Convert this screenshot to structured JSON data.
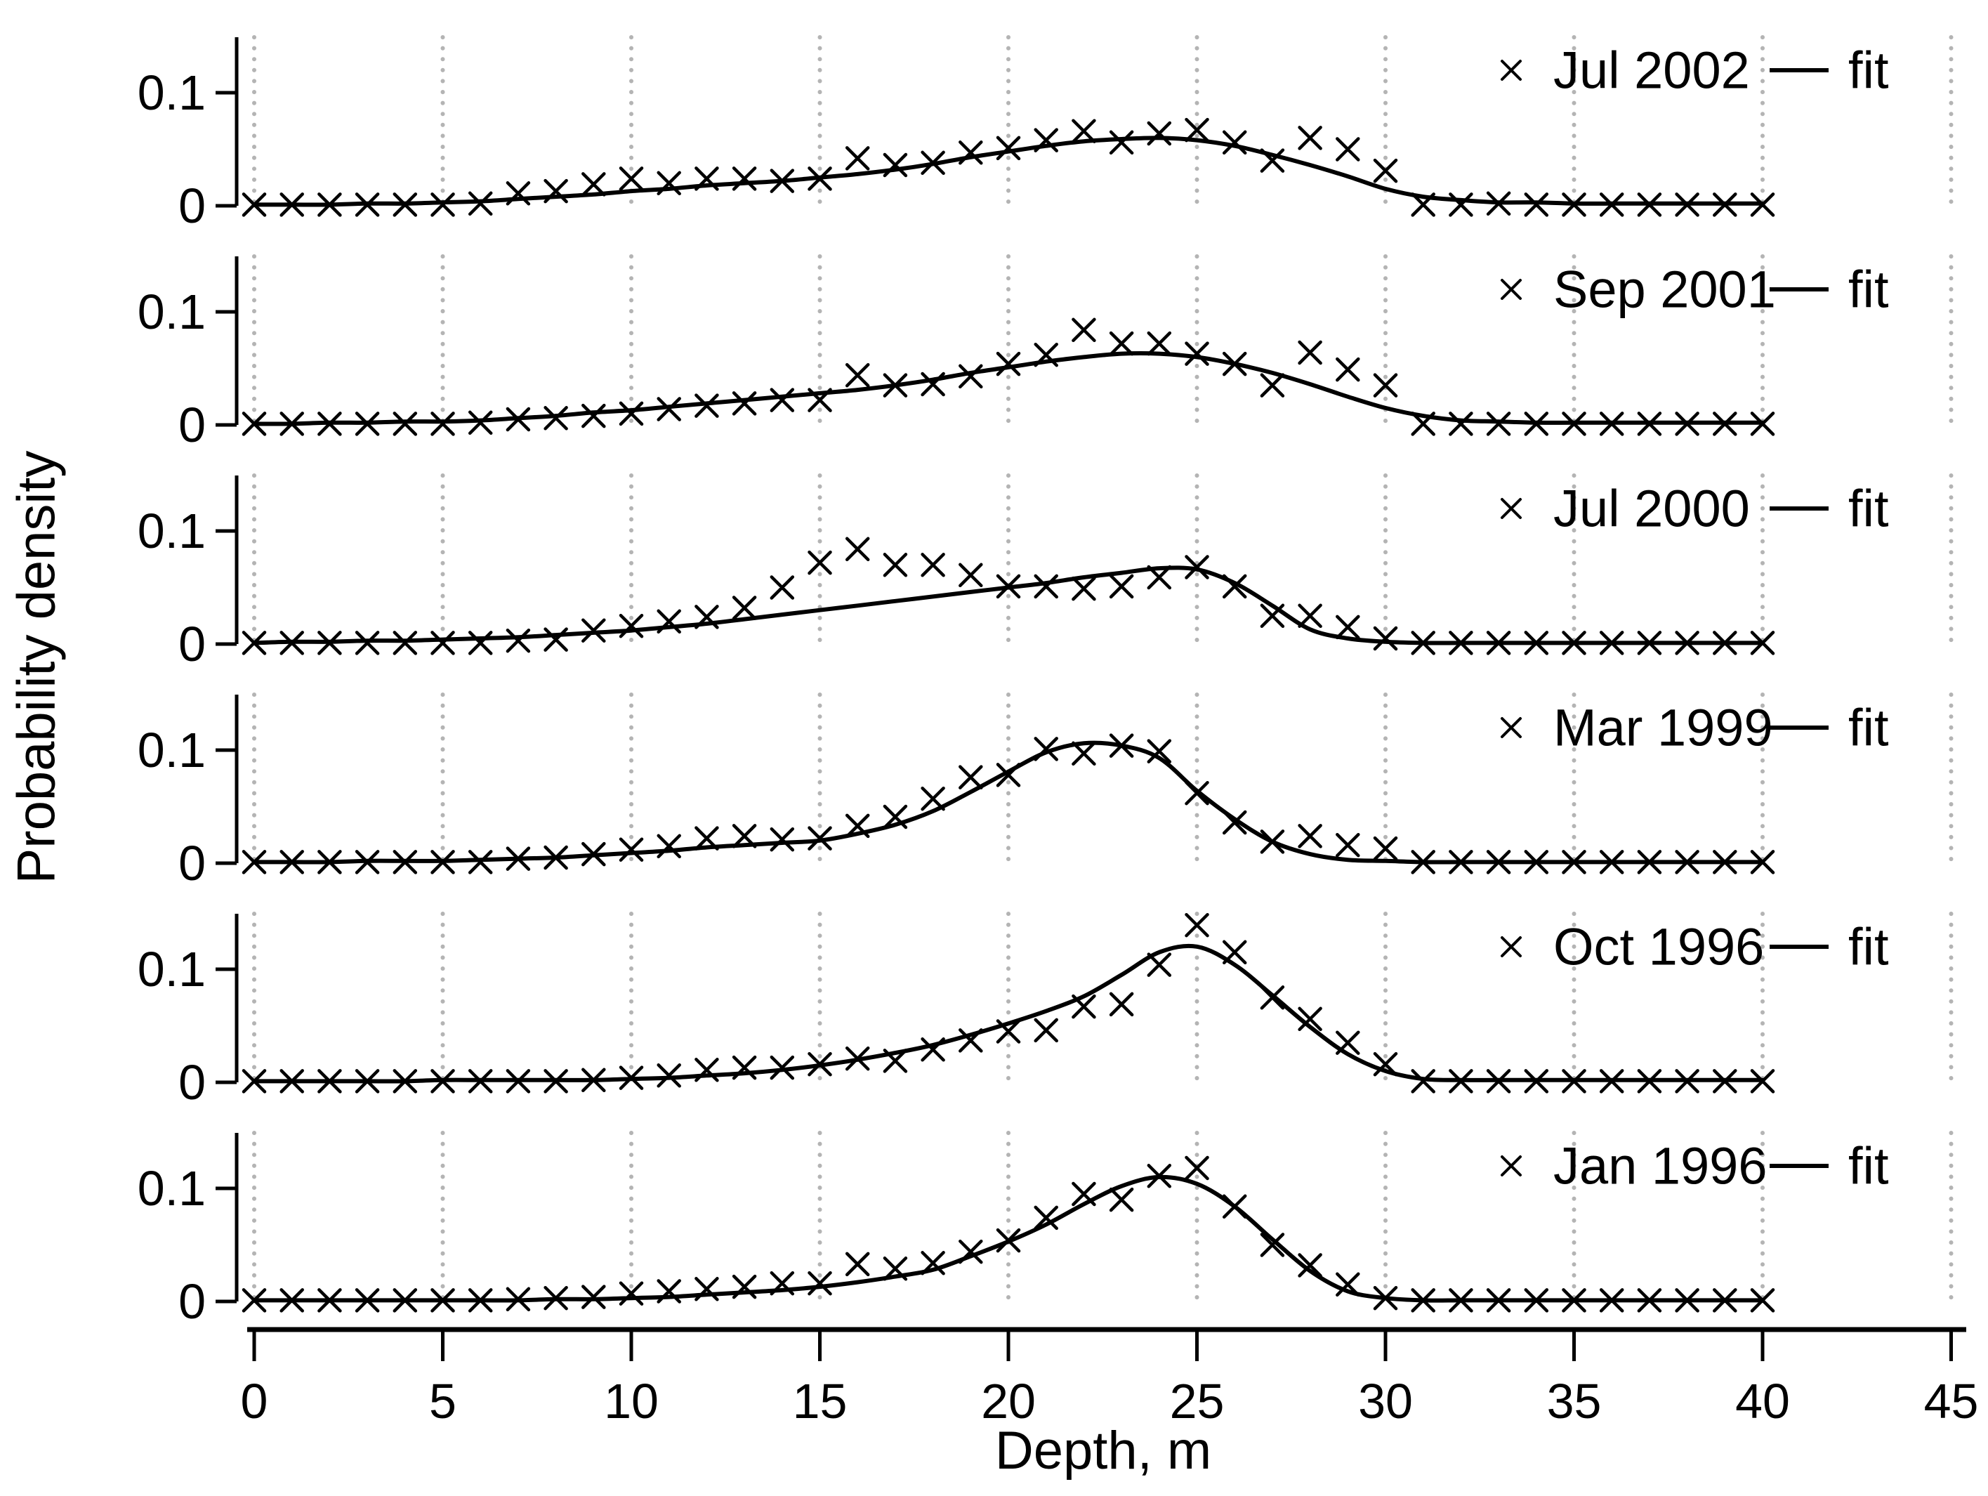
{
  "figure": {
    "background": "#ffffff"
  },
  "chart_data": {
    "type": "scatter",
    "subtype": "small-multiples of scatter points with fitted curves",
    "title": "",
    "xlabel": "Depth, m",
    "ylabel": "Probability density",
    "xlim": [
      -0.8,
      46
    ],
    "ylim": [
      0,
      0.13
    ],
    "x_ticks": [
      0,
      5,
      10,
      15,
      20,
      25,
      30,
      35,
      40,
      45
    ],
    "x_gridlines": [
      0,
      5,
      10,
      15,
      20,
      25,
      30,
      35,
      40,
      45
    ],
    "grid_style": "dotted-vertical",
    "y_ticks": [
      0,
      0.1
    ],
    "y_tick_labels": [
      "0",
      "0.1"
    ],
    "legend_position": "top-right-inside-each-panel",
    "legend_fit_label": "fit",
    "marker_glyph": "x",
    "colors": {
      "data": "#000000",
      "fit": "#000000",
      "grid": "#b4b4b4",
      "text": "#000000",
      "axis": "#000000"
    },
    "x": [
      0,
      1,
      2,
      3,
      4,
      5,
      6,
      7,
      8,
      9,
      10,
      11,
      12,
      13,
      14,
      15,
      16,
      17,
      18,
      19,
      20,
      21,
      22,
      23,
      24,
      25,
      26,
      27,
      28,
      29,
      30,
      31,
      32,
      33,
      34,
      35,
      36,
      37,
      38,
      39,
      40
    ],
    "panels": [
      {
        "label": "Jul 2002",
        "points": [
          0.001,
          0.001,
          0.001,
          0.001,
          0.001,
          0.001,
          0.002,
          0.011,
          0.013,
          0.019,
          0.024,
          0.02,
          0.024,
          0.024,
          0.022,
          0.024,
          0.042,
          0.036,
          0.038,
          0.047,
          0.051,
          0.058,
          0.066,
          0.056,
          0.064,
          0.067,
          0.056,
          0.04,
          0.06,
          0.05,
          0.031,
          0.001,
          0.001,
          0.002,
          0.001,
          0.001,
          0.001,
          0.001,
          0.001,
          0.001,
          0.001
        ],
        "fit": [
          0.001,
          0.001,
          0.001,
          0.002,
          0.002,
          0.003,
          0.004,
          0.006,
          0.008,
          0.01,
          0.013,
          0.015,
          0.018,
          0.02,
          0.022,
          0.025,
          0.028,
          0.032,
          0.037,
          0.043,
          0.048,
          0.053,
          0.057,
          0.059,
          0.06,
          0.058,
          0.053,
          0.045,
          0.036,
          0.026,
          0.015,
          0.008,
          0.005,
          0.003,
          0.003,
          0.002,
          0.002,
          0.002,
          0.002,
          0.002,
          0.002
        ]
      },
      {
        "label": "Sep 2001",
        "points": [
          0.001,
          0.001,
          0.001,
          0.001,
          0.001,
          0.001,
          0.002,
          0.005,
          0.006,
          0.008,
          0.01,
          0.014,
          0.017,
          0.019,
          0.022,
          0.022,
          0.044,
          0.035,
          0.036,
          0.043,
          0.054,
          0.062,
          0.084,
          0.072,
          0.072,
          0.063,
          0.054,
          0.035,
          0.064,
          0.049,
          0.035,
          0.001,
          0.001,
          0.001,
          0.001,
          0.001,
          0.001,
          0.001,
          0.001,
          0.001,
          0.001
        ],
        "fit": [
          0.001,
          0.001,
          0.002,
          0.002,
          0.003,
          0.003,
          0.004,
          0.006,
          0.008,
          0.011,
          0.013,
          0.016,
          0.019,
          0.022,
          0.025,
          0.028,
          0.031,
          0.035,
          0.04,
          0.046,
          0.051,
          0.056,
          0.06,
          0.063,
          0.063,
          0.06,
          0.054,
          0.046,
          0.036,
          0.025,
          0.015,
          0.008,
          0.004,
          0.003,
          0.002,
          0.002,
          0.002,
          0.002,
          0.002,
          0.002,
          0.002
        ]
      },
      {
        "label": "Jul 2000",
        "points": [
          0.001,
          0.001,
          0.001,
          0.001,
          0.001,
          0.001,
          0.001,
          0.003,
          0.004,
          0.012,
          0.016,
          0.02,
          0.024,
          0.032,
          0.05,
          0.072,
          0.084,
          0.07,
          0.07,
          0.061,
          0.051,
          0.051,
          0.049,
          0.051,
          0.059,
          0.068,
          0.051,
          0.025,
          0.025,
          0.015,
          0.005,
          0.001,
          0.001,
          0.001,
          0.001,
          0.001,
          0.001,
          0.001,
          0.001,
          0.001,
          0.001
        ],
        "fit": [
          0.001,
          0.002,
          0.002,
          0.003,
          0.003,
          0.004,
          0.005,
          0.006,
          0.008,
          0.01,
          0.012,
          0.015,
          0.018,
          0.022,
          0.026,
          0.03,
          0.034,
          0.038,
          0.042,
          0.046,
          0.05,
          0.054,
          0.059,
          0.063,
          0.067,
          0.066,
          0.054,
          0.034,
          0.013,
          0.005,
          0.002,
          0.001,
          0.001,
          0.001,
          0.001,
          0.001,
          0.001,
          0.001,
          0.001,
          0.001,
          0.001
        ]
      },
      {
        "label": "Mar 1999",
        "points": [
          0.001,
          0.001,
          0.001,
          0.001,
          0.001,
          0.001,
          0.001,
          0.004,
          0.005,
          0.008,
          0.012,
          0.015,
          0.022,
          0.024,
          0.021,
          0.022,
          0.033,
          0.041,
          0.057,
          0.076,
          0.078,
          0.101,
          0.097,
          0.104,
          0.099,
          0.062,
          0.036,
          0.019,
          0.024,
          0.016,
          0.013,
          0.001,
          0.001,
          0.001,
          0.001,
          0.001,
          0.001,
          0.001,
          0.001,
          0.001,
          0.001
        ],
        "fit": [
          0.001,
          0.001,
          0.001,
          0.002,
          0.002,
          0.002,
          0.003,
          0.004,
          0.005,
          0.007,
          0.009,
          0.011,
          0.014,
          0.016,
          0.018,
          0.02,
          0.026,
          0.034,
          0.046,
          0.063,
          0.081,
          0.098,
          0.106,
          0.104,
          0.093,
          0.064,
          0.039,
          0.019,
          0.008,
          0.003,
          0.002,
          0.001,
          0.001,
          0.001,
          0.001,
          0.001,
          0.001,
          0.001,
          0.001,
          0.001,
          0.001
        ]
      },
      {
        "label": "Oct 1996",
        "points": [
          0.001,
          0.001,
          0.001,
          0.001,
          0.001,
          0.001,
          0.001,
          0.001,
          0.001,
          0.002,
          0.004,
          0.006,
          0.011,
          0.013,
          0.013,
          0.016,
          0.021,
          0.019,
          0.029,
          0.037,
          0.045,
          0.046,
          0.067,
          0.069,
          0.104,
          0.139,
          0.115,
          0.075,
          0.056,
          0.035,
          0.016,
          0.001,
          0.001,
          0.001,
          0.001,
          0.001,
          0.001,
          0.001,
          0.001,
          0.001,
          0.001
        ],
        "fit": [
          0.001,
          0.001,
          0.001,
          0.001,
          0.001,
          0.002,
          0.002,
          0.002,
          0.002,
          0.002,
          0.003,
          0.004,
          0.006,
          0.008,
          0.011,
          0.015,
          0.02,
          0.026,
          0.033,
          0.042,
          0.052,
          0.063,
          0.076,
          0.095,
          0.115,
          0.12,
          0.104,
          0.077,
          0.049,
          0.025,
          0.01,
          0.003,
          0.002,
          0.002,
          0.002,
          0.002,
          0.002,
          0.002,
          0.002,
          0.002,
          0.002
        ]
      },
      {
        "label": "Jan 1996",
        "points": [
          0.001,
          0.001,
          0.001,
          0.001,
          0.001,
          0.001,
          0.001,
          0.002,
          0.003,
          0.004,
          0.007,
          0.009,
          0.011,
          0.013,
          0.016,
          0.016,
          0.033,
          0.029,
          0.034,
          0.044,
          0.054,
          0.074,
          0.095,
          0.09,
          0.111,
          0.118,
          0.084,
          0.05,
          0.032,
          0.015,
          0.003,
          0.001,
          0.001,
          0.001,
          0.001,
          0.001,
          0.001,
          0.001,
          0.001,
          0.001,
          0.001
        ],
        "fit": [
          0.001,
          0.001,
          0.001,
          0.001,
          0.001,
          0.001,
          0.001,
          0.001,
          0.002,
          0.002,
          0.003,
          0.004,
          0.006,
          0.008,
          0.01,
          0.013,
          0.017,
          0.022,
          0.028,
          0.04,
          0.053,
          0.068,
          0.086,
          0.102,
          0.11,
          0.104,
          0.084,
          0.055,
          0.027,
          0.009,
          0.003,
          0.001,
          0.001,
          0.001,
          0.001,
          0.001,
          0.001,
          0.001,
          0.001,
          0.001,
          0.001
        ]
      }
    ]
  }
}
